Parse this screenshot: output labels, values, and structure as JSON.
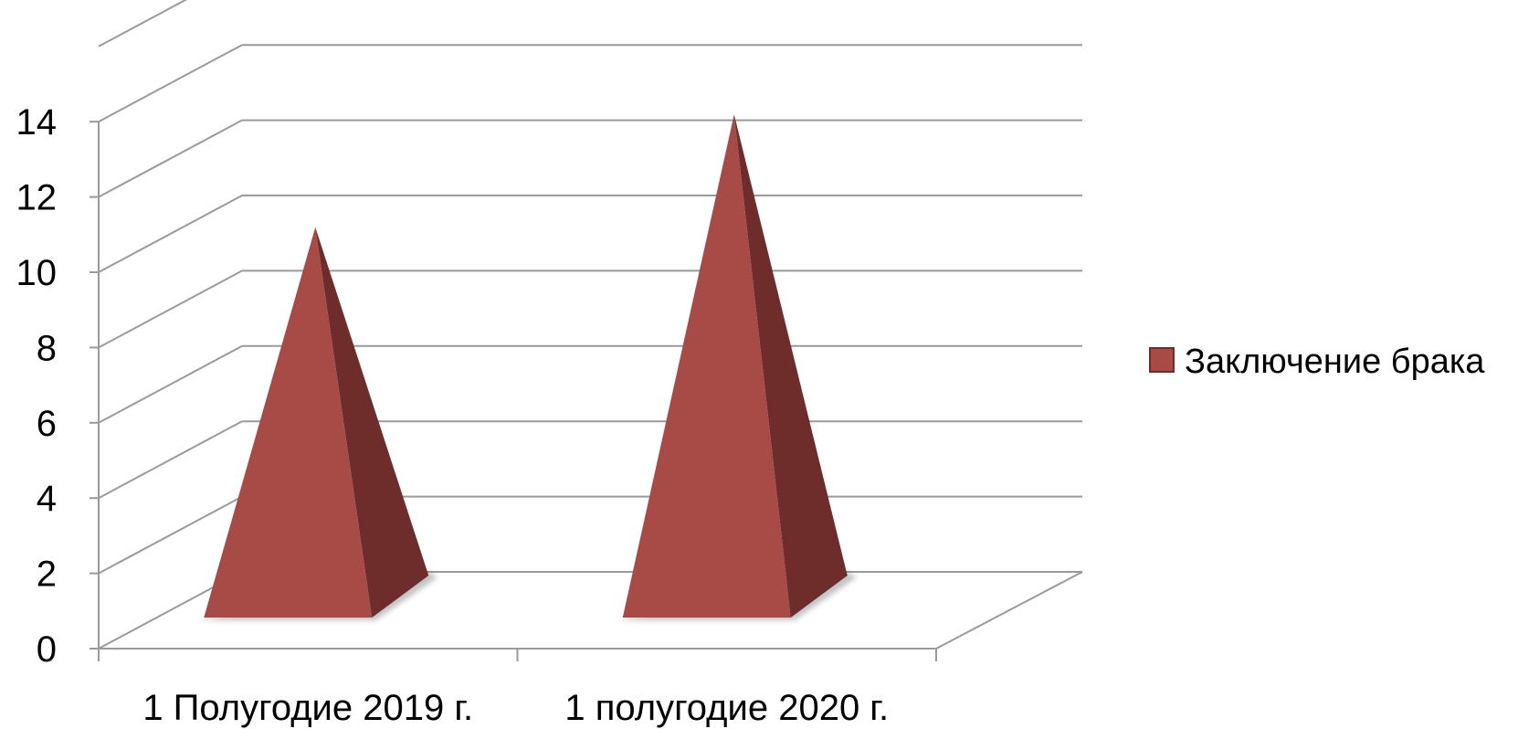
{
  "chart_data": {
    "type": "bar",
    "style": "3d-pyramid",
    "categories": [
      "1 Полугодие 2019 г.",
      "1 полугодие 2020 г."
    ],
    "series": [
      {
        "name": "Заключение брака",
        "values": [
          11,
          14
        ],
        "color": "#a84a46"
      }
    ],
    "yticks": [
      "0",
      "2",
      "4",
      "6",
      "8",
      "10",
      "12",
      "14"
    ],
    "ylim": [
      0,
      16
    ],
    "grid": true,
    "legend": "right"
  },
  "colors": {
    "front_face": "#a84a46",
    "side_face": "#6e2c2a",
    "gridline": "#9a9a9a"
  }
}
